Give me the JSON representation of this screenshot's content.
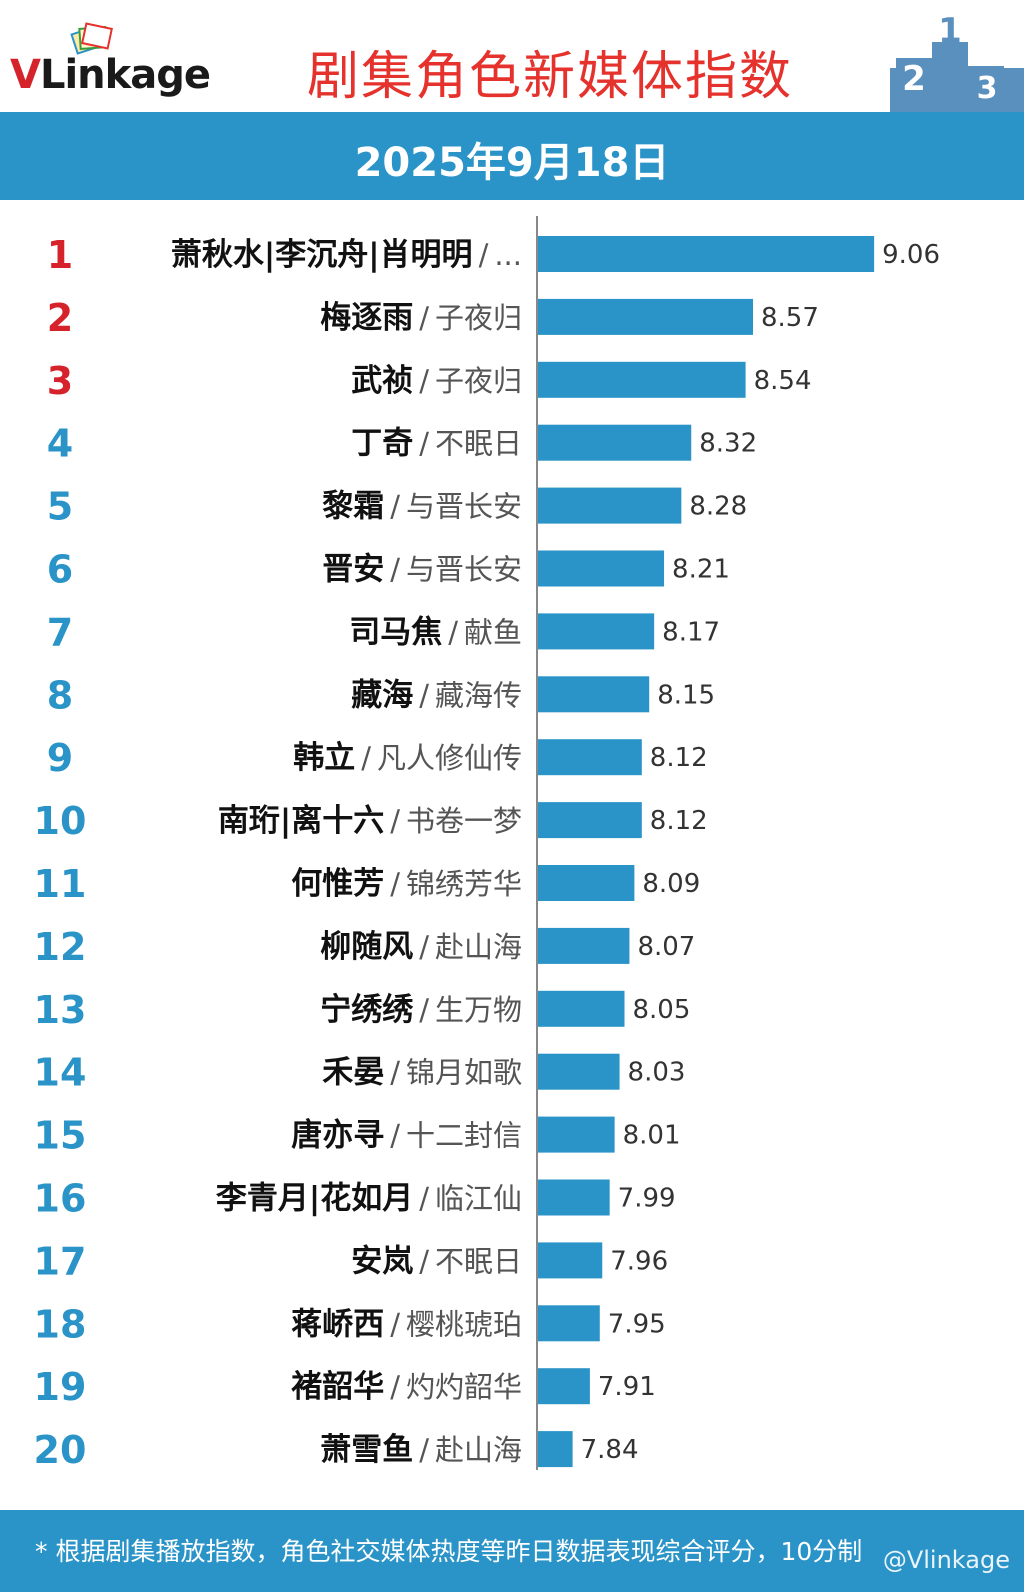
{
  "header": {
    "logo_prefix": "V",
    "logo_text": "Linkage",
    "title": "剧集角色新媒体指数",
    "podium_numbers": [
      "2",
      "1",
      "3"
    ]
  },
  "date": "2025年9月18日",
  "colors": {
    "accent_blue": "#2a93c7",
    "bar": "#2a93c7",
    "rank_top3": "#d6222a",
    "rank_rest": "#2a93c7",
    "title_red": "#e5322d"
  },
  "footer": {
    "note": "* 根据剧集播放指数，角色社交媒体热度等昨日数据表现综合评分，10分制",
    "watermark": "@Vlinkage"
  },
  "chart_data": {
    "type": "bar",
    "orientation": "horizontal",
    "title": "剧集角色新媒体指数",
    "xlabel": "",
    "ylabel": "",
    "xlim": [
      7.7,
      9.1
    ],
    "grid": false,
    "rows": [
      {
        "rank": "1",
        "name": "萧秋水|李沉舟|肖明明",
        "show": "...",
        "value": 9.06
      },
      {
        "rank": "2",
        "name": "梅逐雨",
        "show": "子夜归",
        "value": 8.57
      },
      {
        "rank": "3",
        "name": "武祯",
        "show": "子夜归",
        "value": 8.54
      },
      {
        "rank": "4",
        "name": "丁奇",
        "show": "不眠日",
        "value": 8.32
      },
      {
        "rank": "5",
        "name": "黎霜",
        "show": "与晋长安",
        "value": 8.28
      },
      {
        "rank": "6",
        "name": "晋安",
        "show": "与晋长安",
        "value": 8.21
      },
      {
        "rank": "7",
        "name": "司马焦",
        "show": "献鱼",
        "value": 8.17
      },
      {
        "rank": "8",
        "name": "藏海",
        "show": "藏海传",
        "value": 8.15
      },
      {
        "rank": "9",
        "name": "韩立",
        "show": "凡人修仙传",
        "value": 8.12
      },
      {
        "rank": "10",
        "name": "南珩|离十六",
        "show": "书卷一梦",
        "value": 8.12
      },
      {
        "rank": "11",
        "name": "何惟芳",
        "show": "锦绣芳华",
        "value": 8.09
      },
      {
        "rank": "12",
        "name": "柳随风",
        "show": "赴山海",
        "value": 8.07
      },
      {
        "rank": "13",
        "name": "宁绣绣",
        "show": "生万物",
        "value": 8.05
      },
      {
        "rank": "14",
        "name": "禾晏",
        "show": "锦月如歌",
        "value": 8.03
      },
      {
        "rank": "15",
        "name": "唐亦寻",
        "show": "十二封信",
        "value": 8.01
      },
      {
        "rank": "16",
        "name": "李青月|花如月",
        "show": "临江仙",
        "value": 7.99
      },
      {
        "rank": "17",
        "name": "安岚",
        "show": "不眠日",
        "value": 7.96
      },
      {
        "rank": "18",
        "name": "蒋峤西",
        "show": "樱桃琥珀",
        "value": 7.95
      },
      {
        "rank": "19",
        "name": "褚韶华",
        "show": "灼灼韶华",
        "value": 7.91
      },
      {
        "rank": "20",
        "name": "萧雪鱼",
        "show": "赴山海",
        "value": 7.84
      }
    ]
  }
}
